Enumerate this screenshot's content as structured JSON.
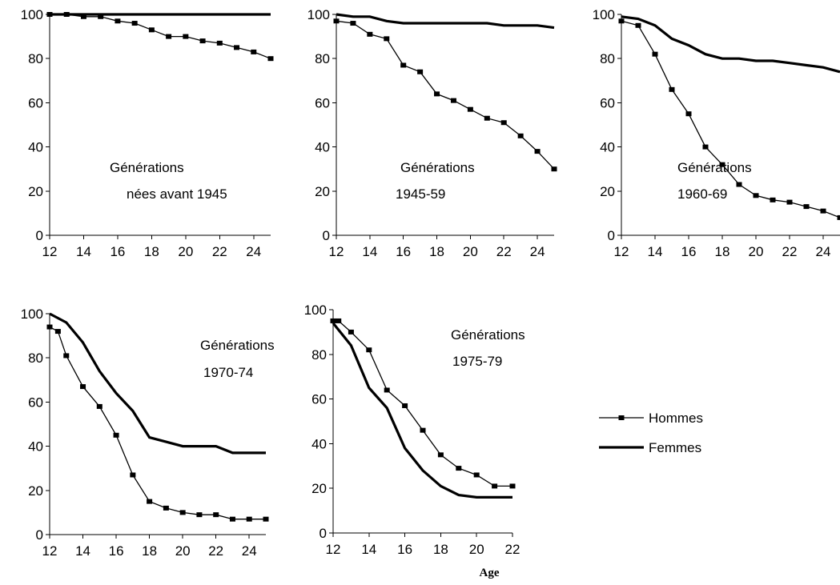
{
  "legend": [
    {
      "name": "Hommes",
      "style": "thin-marker"
    },
    {
      "name": "Femmes",
      "style": "thick"
    }
  ],
  "xlabel": "Age",
  "chart_data": [
    {
      "type": "line",
      "annotation": [
        "Générations",
        "nées avant 1945"
      ],
      "xlim": [
        12,
        25
      ],
      "ylim": [
        0,
        100
      ],
      "xticks": [
        12,
        14,
        16,
        18,
        20,
        22,
        24
      ],
      "yticks": [
        0,
        20,
        40,
        60,
        80,
        100
      ],
      "series": [
        {
          "name": "Hommes",
          "x": [
            12,
            13,
            14,
            15,
            16,
            17,
            18,
            19,
            20,
            21,
            22,
            23,
            24,
            25
          ],
          "values": [
            100,
            100,
            99,
            99,
            97,
            96,
            93,
            90,
            90,
            88,
            87,
            85,
            83,
            80
          ]
        },
        {
          "name": "Femmes",
          "x": [
            12,
            13,
            14,
            15,
            16,
            17,
            18,
            19,
            20,
            21,
            22,
            23,
            24,
            25
          ],
          "values": [
            100,
            100,
            100,
            100,
            100,
            100,
            100,
            100,
            100,
            100,
            100,
            100,
            100,
            100
          ]
        }
      ]
    },
    {
      "type": "line",
      "annotation": [
        "Générations",
        "1945-59"
      ],
      "xlim": [
        12,
        25
      ],
      "ylim": [
        0,
        100
      ],
      "xticks": [
        12,
        14,
        16,
        18,
        20,
        22,
        24
      ],
      "yticks": [
        0,
        20,
        40,
        60,
        80,
        100
      ],
      "series": [
        {
          "name": "Hommes",
          "x": [
            12,
            13,
            14,
            15,
            16,
            17,
            18,
            19,
            20,
            21,
            22,
            23,
            24,
            25
          ],
          "values": [
            97,
            96,
            91,
            89,
            77,
            74,
            64,
            61,
            57,
            53,
            51,
            45,
            38,
            30
          ]
        },
        {
          "name": "Femmes",
          "x": [
            12,
            13,
            14,
            15,
            16,
            17,
            18,
            19,
            20,
            21,
            22,
            23,
            24,
            25
          ],
          "values": [
            100,
            99,
            99,
            97,
            96,
            96,
            96,
            96,
            96,
            96,
            95,
            95,
            95,
            94
          ]
        }
      ]
    },
    {
      "type": "line",
      "annotation": [
        "Générations",
        "1960-69"
      ],
      "xlim": [
        12,
        25
      ],
      "ylim": [
        0,
        100
      ],
      "xticks": [
        12,
        14,
        16,
        18,
        20,
        22,
        24
      ],
      "yticks": [
        0,
        20,
        40,
        60,
        80,
        100
      ],
      "series": [
        {
          "name": "Hommes",
          "x": [
            12,
            13,
            14,
            15,
            16,
            17,
            18,
            19,
            20,
            21,
            22,
            23,
            24,
            25
          ],
          "values": [
            97,
            95,
            82,
            66,
            55,
            40,
            32,
            23,
            18,
            16,
            15,
            13,
            11,
            8
          ]
        },
        {
          "name": "Femmes",
          "x": [
            12,
            13,
            14,
            15,
            16,
            17,
            18,
            19,
            20,
            21,
            22,
            23,
            24,
            25
          ],
          "values": [
            99,
            98,
            95,
            89,
            86,
            82,
            80,
            80,
            79,
            79,
            78,
            77,
            76,
            74
          ]
        }
      ]
    },
    {
      "type": "line",
      "annotation": [
        "Générations",
        "1970-74"
      ],
      "xlim": [
        12,
        25
      ],
      "ylim": [
        0,
        100
      ],
      "xticks": [
        12,
        14,
        16,
        18,
        20,
        22,
        24
      ],
      "yticks": [
        0,
        20,
        40,
        60,
        80,
        100
      ],
      "series": [
        {
          "name": "Hommes",
          "x": [
            12,
            12.5,
            13,
            14,
            15,
            16,
            17,
            18,
            19,
            20,
            21,
            22,
            23,
            24,
            25
          ],
          "values": [
            94,
            92,
            81,
            67,
            58,
            45,
            27,
            15,
            12,
            10,
            9,
            9,
            7,
            7,
            7
          ]
        },
        {
          "name": "Femmes",
          "x": [
            12,
            13,
            14,
            15,
            16,
            17,
            18,
            19,
            20,
            21,
            22,
            23,
            24,
            25
          ],
          "values": [
            100,
            96,
            87,
            74,
            64,
            56,
            44,
            42,
            40,
            40,
            40,
            37,
            37,
            37
          ]
        }
      ]
    },
    {
      "type": "line",
      "annotation": [
        "Générations",
        "1975-79"
      ],
      "xlim": [
        12,
        22
      ],
      "ylim": [
        0,
        100
      ],
      "xticks": [
        12,
        14,
        16,
        18,
        20,
        22
      ],
      "yticks": [
        0,
        20,
        40,
        60,
        80,
        100
      ],
      "series": [
        {
          "name": "Hommes",
          "x": [
            12,
            12.3,
            13,
            14,
            15,
            16,
            17,
            18,
            19,
            20,
            21,
            22
          ],
          "values": [
            95,
            95,
            90,
            82,
            64,
            57,
            46,
            35,
            29,
            26,
            21,
            21
          ]
        },
        {
          "name": "Femmes",
          "x": [
            12,
            13,
            14,
            15,
            16,
            17,
            18,
            19,
            20,
            21,
            22
          ],
          "values": [
            94,
            84,
            65,
            56,
            38,
            28,
            21,
            17,
            16,
            16,
            16
          ]
        }
      ]
    }
  ]
}
